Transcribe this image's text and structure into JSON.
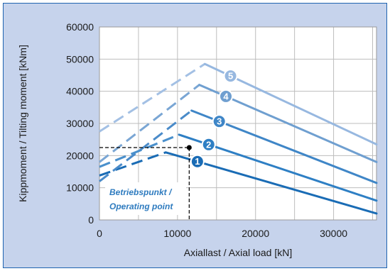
{
  "chart_data": {
    "type": "line",
    "xlabel": "Axiallast / Axial load [kN]",
    "ylabel": "Kippmoment / Tilting moment [kNm]",
    "xlim": [
      0,
      35500
    ],
    "ylim": [
      0,
      60000
    ],
    "x_ticks": [
      "0",
      "10000",
      "20000",
      "30000"
    ],
    "x_tick_values": [
      0,
      10000,
      20000,
      30000
    ],
    "y_ticks": [
      "0",
      "10000",
      "20000",
      "30000",
      "40000",
      "50000",
      "60000"
    ],
    "y_tick_values": [
      0,
      10000,
      20000,
      30000,
      40000,
      50000,
      60000
    ],
    "grid": true,
    "series": [
      {
        "badge": "1",
        "color": "#1a6cb5",
        "light": "#1a6cb5",
        "dashed": [
          [
            0,
            13800
          ],
          [
            8500,
            21000
          ]
        ],
        "solid": [
          [
            8500,
            21000
          ],
          [
            35500,
            2000
          ]
        ]
      },
      {
        "badge": "2",
        "color": "#2e7fc4",
        "light": "#4a90cc",
        "dashed": [
          [
            0,
            16500
          ],
          [
            10200,
            26500
          ]
        ],
        "solid": [
          [
            10200,
            26500
          ],
          [
            35500,
            6000
          ]
        ]
      },
      {
        "badge": "3",
        "color": "#3f86c7",
        "light": "#4a8bc9",
        "dashed": [
          [
            0,
            12000
          ],
          [
            11800,
            34000
          ]
        ],
        "solid": [
          [
            11800,
            34000
          ],
          [
            35500,
            11500
          ]
        ]
      },
      {
        "badge": "4",
        "color": "#6f9fd0",
        "light": "#7aa6d4",
        "dashed": [
          [
            0,
            18000
          ],
          [
            12800,
            42000
          ]
        ],
        "solid": [
          [
            12800,
            42000
          ],
          [
            35500,
            18000
          ]
        ]
      },
      {
        "badge": "5",
        "color": "#97b8e0",
        "light": "#a3c0e4",
        "dashed": [
          [
            0,
            27500
          ],
          [
            13500,
            48500
          ]
        ],
        "solid": [
          [
            13500,
            48500
          ],
          [
            35500,
            23500
          ]
        ]
      }
    ],
    "operating_point": {
      "x": 11500,
      "y": 22500,
      "label_line1": "Betriebspunkt /",
      "label_line2": "Operating point"
    }
  }
}
